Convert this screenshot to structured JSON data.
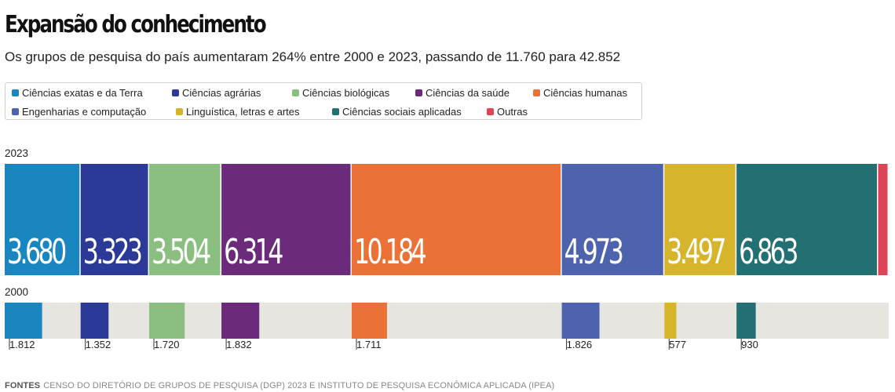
{
  "title": "Expansão do conhecimento",
  "subtitle": "Os grupos de pesquisa do país aumentaram 264% entre 2000 e 2023, passando de 11.760 para 42.852",
  "footer": {
    "label": "FONTES",
    "text": "CENSO DO DIRETÓRIO DE GRUPOS DE PESQUISA (DGP) 2023 E INSTITUTO DE PESQUISA ECONÔMICA APLICADA (IPEA)"
  },
  "legend": [
    {
      "label": "Ciências exatas e da Terra",
      "color": "#1a86c0"
    },
    {
      "label": "Ciências agrárias",
      "color": "#2b3a96"
    },
    {
      "label": "Ciências biológicas",
      "color": "#8bbf81"
    },
    {
      "label": "Ciências da saúde",
      "color": "#6b2a7a"
    },
    {
      "label": "Ciências humanas",
      "color": "#eb7236"
    },
    {
      "label": "Engenharias e computação",
      "color": "#4e63ae"
    },
    {
      "label": "Linguística, letras e artes",
      "color": "#d6b52c"
    },
    {
      "label": "Ciências sociais aplicadas",
      "color": "#237072"
    },
    {
      "label": "Outras",
      "color": "#de4356"
    }
  ],
  "chart_data": {
    "type": "bar",
    "orientation": "horizontal stacked",
    "categories": [
      "Ciências exatas e da Terra",
      "Ciências agrárias",
      "Ciências biológicas",
      "Ciências da saúde",
      "Ciências humanas",
      "Engenharias e computação",
      "Linguística, letras e artes",
      "Ciências sociais aplicadas",
      "Outras"
    ],
    "series": [
      {
        "name": "2023",
        "values": [
          3680,
          3323,
          3504,
          6314,
          10184,
          4973,
          3497,
          6863,
          514
        ],
        "labels": [
          "3.680",
          "3.323",
          "3.504",
          "6.314",
          "10.184",
          "4.973",
          "3.497",
          "6.863",
          ""
        ]
      },
      {
        "name": "2000",
        "values": [
          1812,
          1352,
          1720,
          1832,
          1711,
          1826,
          577,
          930,
          0
        ],
        "labels": [
          "1.812",
          "1.352",
          "1.720",
          "1.832",
          "1.711",
          "1.826",
          "577",
          "930",
          ""
        ]
      }
    ],
    "total_2023": 42852,
    "total_2000": 11760
  }
}
